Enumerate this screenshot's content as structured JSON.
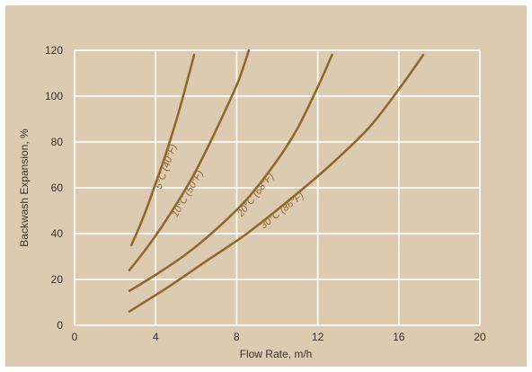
{
  "chart_data": {
    "type": "line",
    "title": "",
    "xlabel": "Flow Rate, m/h",
    "ylabel": "Backwash Expansion, %",
    "xlim": [
      0,
      20
    ],
    "ylim": [
      0,
      120
    ],
    "xticks": [
      0,
      4,
      8,
      12,
      16,
      20
    ],
    "yticks": [
      0,
      20,
      40,
      60,
      80,
      100,
      120
    ],
    "grid": true,
    "colors": {
      "panel_background": "#dccbb0",
      "grid": "#ffffff",
      "curve": "#8f6a2e",
      "text": "#3a3026"
    },
    "series": [
      {
        "name": "5°C (40°F)",
        "x": [
          2.8,
          3.2,
          3.6,
          4.0,
          4.4,
          4.8,
          5.2,
          5.6,
          5.9
        ],
        "y": [
          35,
          43,
          52,
          62,
          72,
          83,
          95,
          108,
          118
        ]
      },
      {
        "name": "10°C (50°F)",
        "x": [
          2.7,
          3.5,
          4.3,
          5.1,
          5.9,
          6.7,
          7.5,
          8.1,
          8.6
        ],
        "y": [
          24,
          33,
          43,
          54,
          66,
          80,
          95,
          107,
          120
        ]
      },
      {
        "name": "20°C (68°F)",
        "x": [
          2.7,
          4.0,
          5.5,
          7.0,
          8.5,
          10.0,
          11.0,
          12.0,
          12.7
        ],
        "y": [
          15,
          22,
          31,
          42,
          55,
          72,
          86,
          104,
          118
        ]
      },
      {
        "name": "30°C (86°F)",
        "x": [
          2.7,
          4.5,
          6.5,
          8.5,
          10.5,
          12.5,
          14.5,
          16.0,
          17.2
        ],
        "y": [
          6,
          16,
          28,
          40,
          54,
          69,
          86,
          103,
          118
        ]
      }
    ]
  }
}
